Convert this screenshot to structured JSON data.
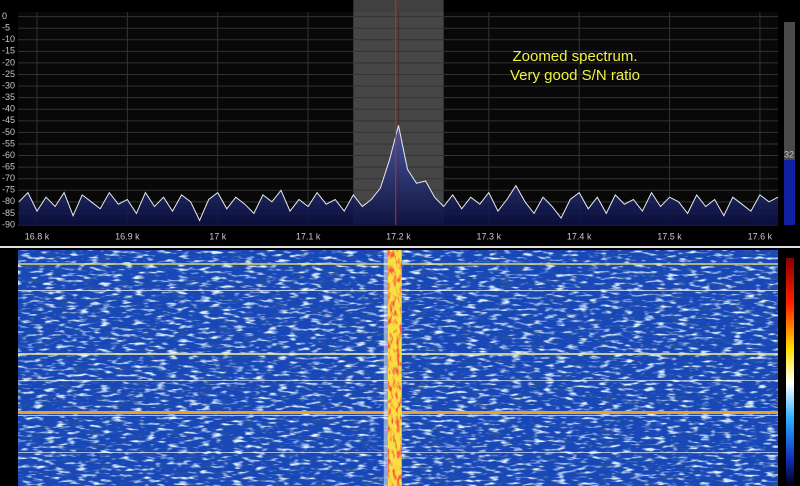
{
  "chart_data": {
    "type": "line",
    "annotations": [
      "Zoomed spectrum.",
      "Very good S/N ratio"
    ],
    "x": [
      16780,
      16790,
      16800,
      16810,
      16820,
      16830,
      16840,
      16850,
      16860,
      16870,
      16880,
      16890,
      16900,
      16910,
      16920,
      16930,
      16940,
      16950,
      16960,
      16970,
      16980,
      16990,
      17000,
      17010,
      17020,
      17030,
      17040,
      17050,
      17060,
      17070,
      17080,
      17090,
      17100,
      17110,
      17120,
      17130,
      17140,
      17150,
      17160,
      17170,
      17180,
      17190,
      17200,
      17210,
      17220,
      17230,
      17240,
      17250,
      17260,
      17270,
      17280,
      17290,
      17300,
      17310,
      17320,
      17330,
      17340,
      17350,
      17360,
      17370,
      17380,
      17390,
      17400,
      17410,
      17420,
      17430,
      17440,
      17450,
      17460,
      17470,
      17480,
      17490,
      17500,
      17510,
      17520,
      17530,
      17540,
      17550,
      17560,
      17570,
      17580,
      17590,
      17600,
      17610,
      17620
    ],
    "values": [
      -80,
      -76,
      -84,
      -78,
      -82,
      -76,
      -86,
      -77,
      -80,
      -83,
      -76,
      -81,
      -79,
      -85,
      -76,
      -82,
      -78,
      -84,
      -77,
      -80,
      -88,
      -79,
      -76,
      -83,
      -78,
      -81,
      -85,
      -77,
      -80,
      -75,
      -84,
      -79,
      -82,
      -76,
      -81,
      -79,
      -84,
      -77,
      -82,
      -79,
      -74,
      -62,
      -47,
      -66,
      -72,
      -71,
      -78,
      -82,
      -77,
      -83,
      -78,
      -81,
      -76,
      -84,
      -79,
      -73,
      -80,
      -85,
      -78,
      -82,
      -87,
      -79,
      -76,
      -83,
      -78,
      -85,
      -77,
      -81,
      -79,
      -84,
      -76,
      -82,
      -78,
      -80,
      -85,
      -77,
      -82,
      -79,
      -86,
      -78,
      -81,
      -84,
      -77,
      -80,
      -78
    ],
    "color": "#e8e8f0",
    "xlim": [
      16779,
      17620
    ],
    "ylim": [
      -90,
      2
    ],
    "xticks": [
      {
        "value": 16800,
        "label": "16.8 k"
      },
      {
        "value": 16900,
        "label": "16.9 k"
      },
      {
        "value": 17000,
        "label": "17 k"
      },
      {
        "value": 17100,
        "label": "17.1 k"
      },
      {
        "value": 17200,
        "label": "17.2 k"
      },
      {
        "value": 17300,
        "label": "17.3 k"
      },
      {
        "value": 17400,
        "label": "17.4 k"
      },
      {
        "value": 17500,
        "label": "17.5 k"
      },
      {
        "value": 17600,
        "label": "17.6 k"
      }
    ],
    "yticks": [
      0,
      -5,
      -10,
      -15,
      -20,
      -25,
      -30,
      -35,
      -40,
      -45,
      -50,
      -55,
      -60,
      -65,
      -70,
      -75,
      -80,
      -85,
      -90
    ],
    "grid": true,
    "filter_band": [
      17150,
      17250
    ],
    "center_frequency": 17197,
    "slider_value": 32
  }
}
